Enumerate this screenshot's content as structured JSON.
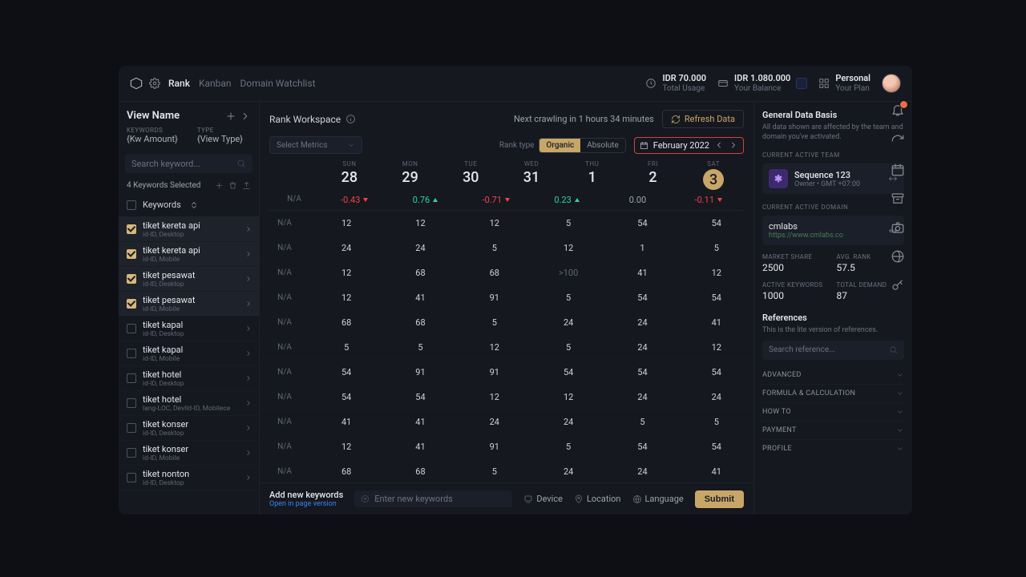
{
  "topbar": {
    "crumbs": {
      "active": "Rank",
      "a": "Kanban",
      "b": "Domain Watchlist"
    },
    "usage": {
      "value": "IDR 70.000",
      "label": "Total Usage"
    },
    "balance": {
      "value": "IDR 1.080.000",
      "label": "Your Balance"
    },
    "plan": {
      "value": "Personal",
      "label": "Your Plan"
    }
  },
  "left": {
    "view_name": "View Name",
    "col_keywords_lbl": "KEYWORDS",
    "col_keywords_val": "{Kw Amount}",
    "col_type_lbl": "TYPE",
    "col_type_val": "{View Type}",
    "search_ph": "Search keyword...",
    "selected": "4 Keywords Selected",
    "kw_header": "Keywords"
  },
  "keywords": [
    {
      "name": "tiket kereta api",
      "meta": "id-ID, Desktop",
      "checked": true,
      "hl": true
    },
    {
      "name": "tiket kereta api",
      "meta": "id-ID, Mobile",
      "checked": true,
      "hl": true
    },
    {
      "name": "tiket pesawat",
      "meta": "id-ID, Desktop",
      "checked": true,
      "hl": true
    },
    {
      "name": "tiket pesawat",
      "meta": "id-ID, Mobile",
      "checked": true,
      "hl": true
    },
    {
      "name": "tiket kapal",
      "meta": "id-ID, Desktop",
      "checked": false,
      "hl": false
    },
    {
      "name": "tiket kapal",
      "meta": "id-ID, Mobile",
      "checked": false,
      "hl": false
    },
    {
      "name": "tiket hotel",
      "meta": "id-ID, Desktop",
      "checked": false,
      "hl": false
    },
    {
      "name": "tiket hotel",
      "meta": "lang-LOC, Devlld-ID, Mobilece",
      "checked": false,
      "hl": false
    },
    {
      "name": "tiket konser",
      "meta": "id-ID, Desktop",
      "checked": false,
      "hl": false
    },
    {
      "name": "tiket konser",
      "meta": "id-ID, Mobile",
      "checked": false,
      "hl": false
    },
    {
      "name": "tiket nonton",
      "meta": "id-ID, Desktop",
      "checked": false,
      "hl": false
    }
  ],
  "center": {
    "workspace": "Rank Workspace",
    "crawl": "Next crawling in 1 hours 34 minutes",
    "refresh": "Refresh Data",
    "metrics_ph": "Select Metrics",
    "ranktype_lbl": "Rank type",
    "seg_a": "Organic",
    "seg_b": "Absolute",
    "date": "February 2022",
    "days": [
      {
        "lbl": "SUN",
        "num": "28"
      },
      {
        "lbl": "MON",
        "num": "29"
      },
      {
        "lbl": "TUE",
        "num": "30"
      },
      {
        "lbl": "WED",
        "num": "31"
      },
      {
        "lbl": "THU",
        "num": "1"
      },
      {
        "lbl": "FRI",
        "num": "2"
      },
      {
        "lbl": "SAT",
        "num": "3",
        "today": true
      }
    ],
    "na": "N/A",
    "deltas": [
      {
        "v": "N/A",
        "dir": ""
      },
      {
        "v": "-0.43",
        "dir": "d"
      },
      {
        "v": "0.76",
        "dir": "u"
      },
      {
        "v": "-0.71",
        "dir": "d"
      },
      {
        "v": "0.23",
        "dir": "u"
      },
      {
        "v": "0.00",
        "dir": ""
      },
      {
        "v": "-0.11",
        "dir": "d"
      }
    ],
    "grid": [
      [
        "12",
        "12",
        "12",
        "5",
        "54",
        "54"
      ],
      [
        "24",
        "24",
        "5",
        "12",
        "1",
        "5"
      ],
      [
        "12",
        "68",
        "68",
        ">100",
        "41",
        "12"
      ],
      [
        "12",
        "41",
        "91",
        "5",
        "54",
        "54"
      ],
      [
        "68",
        "68",
        "5",
        "24",
        "24",
        "41"
      ],
      [
        "5",
        "5",
        "12",
        "5",
        "24",
        "12"
      ],
      [
        "54",
        "91",
        "91",
        "54",
        "54",
        "54"
      ],
      [
        "54",
        "54",
        "12",
        "12",
        "24",
        "24"
      ],
      [
        "41",
        "41",
        "24",
        "24",
        "5",
        "5"
      ],
      [
        "12",
        "41",
        "91",
        "5",
        "54",
        "54"
      ],
      [
        "68",
        "68",
        "5",
        "24",
        "24",
        "41"
      ]
    ]
  },
  "addbar": {
    "title": "Add new keywords",
    "sub": "Open in page version",
    "ph": "Enter new keywords",
    "device": "Device",
    "location": "Location",
    "language": "Language",
    "submit": "Submit"
  },
  "right": {
    "gdb_title": "General Data Basis",
    "gdb_desc": "All data shown are affected by the team and domain you've activated.",
    "team_lbl": "CURRENT ACTIVE TEAM",
    "team_name": "Sequence 123",
    "team_meta": "Owner • GMT +07:00",
    "domain_lbl": "CURRENT ACTIVE DOMAIN",
    "domain_name": "cmlabs",
    "domain_url": "https://www.cmlabs.co",
    "s1l": "MARKET SHARE",
    "s1v": "2500",
    "s2l": "AVG. RANK",
    "s2v": "57.5",
    "s3l": "ACTIVE KEYWORDS",
    "s3v": "1000",
    "s4l": "TOTAL DEMAND",
    "s4v": "87",
    "ref_title": "References",
    "ref_desc": "This is the lite version of references.",
    "ref_ph": "Search reference...",
    "acc": [
      "ADVANCED",
      "FORMULA & CALCULATION",
      "HOW TO",
      "PAYMENT",
      "PROFILE"
    ]
  }
}
